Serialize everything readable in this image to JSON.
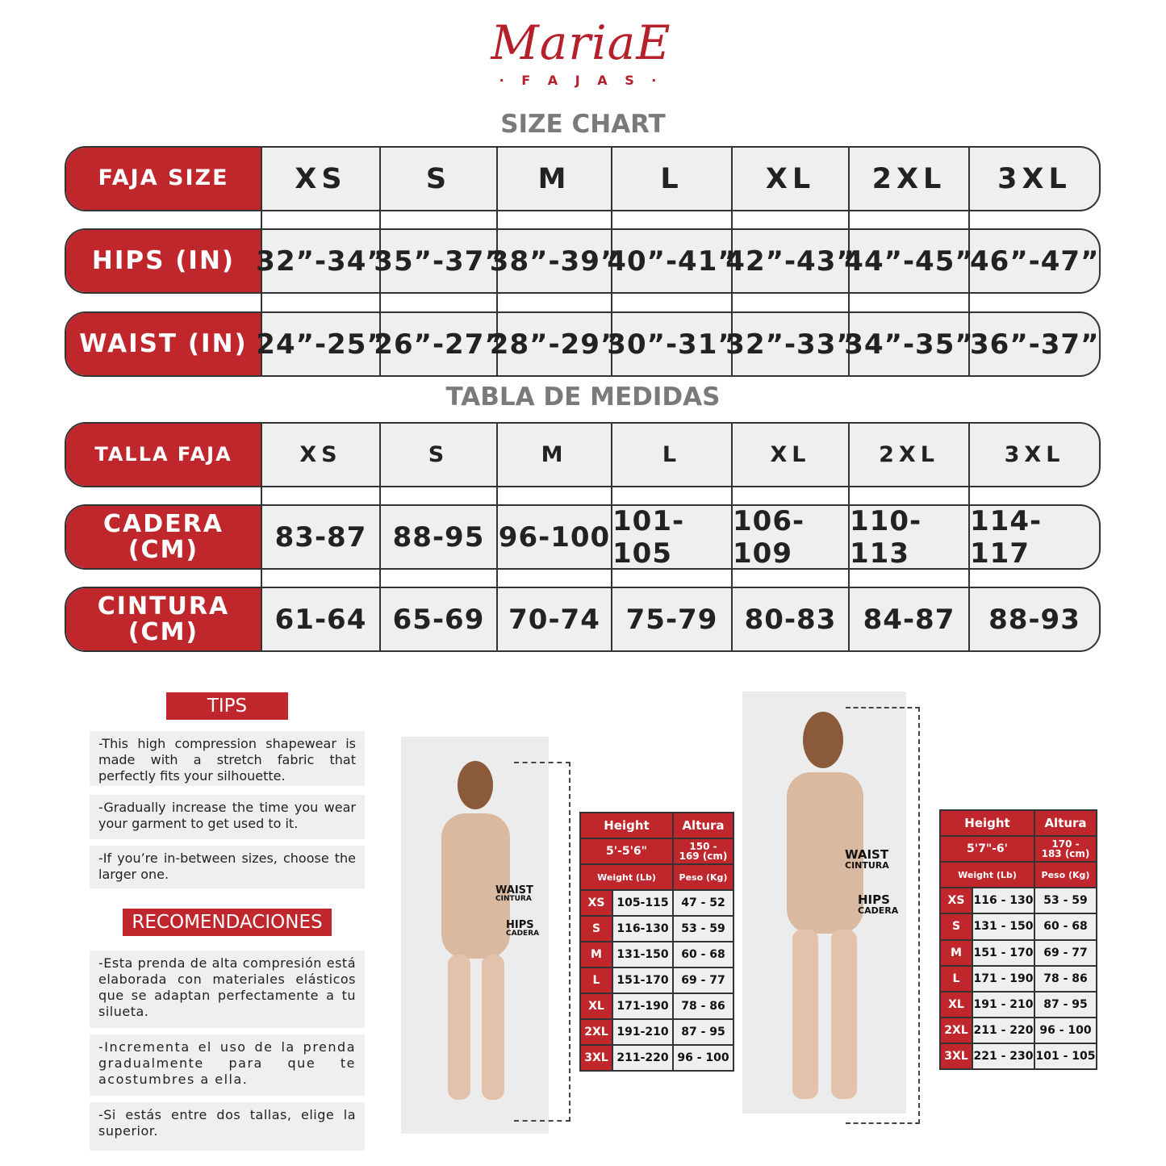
{
  "brand": {
    "name": "MariaE",
    "sub": "· F A J A S ·"
  },
  "size_chart": {
    "title": "SIZE CHART",
    "rows": [
      {
        "label": "FAJA SIZE",
        "cells": [
          "XS",
          "S",
          "M",
          "L",
          "XL",
          "2XL",
          "3XL"
        ]
      },
      {
        "label": "HIPS (IN)",
        "cells": [
          "32”-34”",
          "35”-37”",
          "38”-39”",
          "40”-41”",
          "42”-43”",
          "44”-45”",
          "46”-47”"
        ]
      },
      {
        "label": "WAIST (IN)",
        "cells": [
          "24”-25”",
          "26”-27”",
          "28”-29”",
          "30”-31”",
          "32”-33”",
          "34”-35”",
          "36”-37”"
        ]
      }
    ]
  },
  "tabla": {
    "title": "TABLA DE MEDIDAS",
    "rows": [
      {
        "label": "TALLA FAJA",
        "cells": [
          "XS",
          "S",
          "M",
          "L",
          "XL",
          "2XL",
          "3XL"
        ]
      },
      {
        "label": "CADERA (CM)",
        "cells": [
          "83-87",
          "88-95",
          "96-100",
          "101-105",
          "106-109",
          "110-113",
          "114-117"
        ]
      },
      {
        "label": "CINTURA (CM)",
        "cells": [
          "61-64",
          "65-69",
          "70-74",
          "75-79",
          "80-83",
          "84-87",
          "88-93"
        ]
      }
    ]
  },
  "tips": {
    "title": "TIPS",
    "items": [
      "-This high compression shapewear is made with a stretch fabric that perfectly fits your silhouette.",
      "-Gradually increase the time you wear your garment to get used to it.",
      "-If you’re in-between sizes, choose the larger one."
    ]
  },
  "recomendaciones": {
    "title": "RECOMENDACIONES",
    "items": [
      "-Esta prenda de alta compresión está elaborada con materiales elásticos que se adaptan perfectamente a tu silueta.",
      "-Incrementa el uso de la prenda gradualmente para que te acostumbres a ella.",
      "-Si estás entre dos tallas, elige la superior."
    ]
  },
  "marks": {
    "waist": "WAIST",
    "cintura": "CINTURA",
    "hips": "HIPS",
    "cadera": "CADERA"
  },
  "tables": [
    {
      "height_label": "Height",
      "altura_label": "Altura",
      "height": "5'-5'6\"",
      "altura": "150 - 169 (cm)",
      "weight_label": "Weight (Lb)",
      "peso_label": "Peso (Kg)",
      "rows": [
        [
          "XS",
          "105-115",
          "47 - 52"
        ],
        [
          "S",
          "116-130",
          "53 - 59"
        ],
        [
          "M",
          "131-150",
          "60 - 68"
        ],
        [
          "L",
          "151-170",
          "69 - 77"
        ],
        [
          "XL",
          "171-190",
          "78 - 86"
        ],
        [
          "2XL",
          "191-210",
          "87 - 95"
        ],
        [
          "3XL",
          "211-220",
          "96 - 100"
        ]
      ]
    },
    {
      "height_label": "Height",
      "altura_label": "Altura",
      "height": "5'7\"-6'",
      "altura": "170 - 183 (cm)",
      "weight_label": "Weight (Lb)",
      "peso_label": "Peso (Kg)",
      "rows": [
        [
          "XS",
          "116 - 130",
          "53 - 59"
        ],
        [
          "S",
          "131 - 150",
          "60 - 68"
        ],
        [
          "M",
          "151 - 170",
          "69 - 77"
        ],
        [
          "L",
          "171 - 190",
          "78 - 86"
        ],
        [
          "XL",
          "191 - 210",
          "87 - 95"
        ],
        [
          "2XL",
          "211 - 220",
          "96 - 100"
        ],
        [
          "3XL",
          "221 - 230",
          "101 - 105"
        ]
      ]
    }
  ],
  "colors": {
    "brand_red": "#c0272d",
    "cell_gray": "#efefef"
  }
}
